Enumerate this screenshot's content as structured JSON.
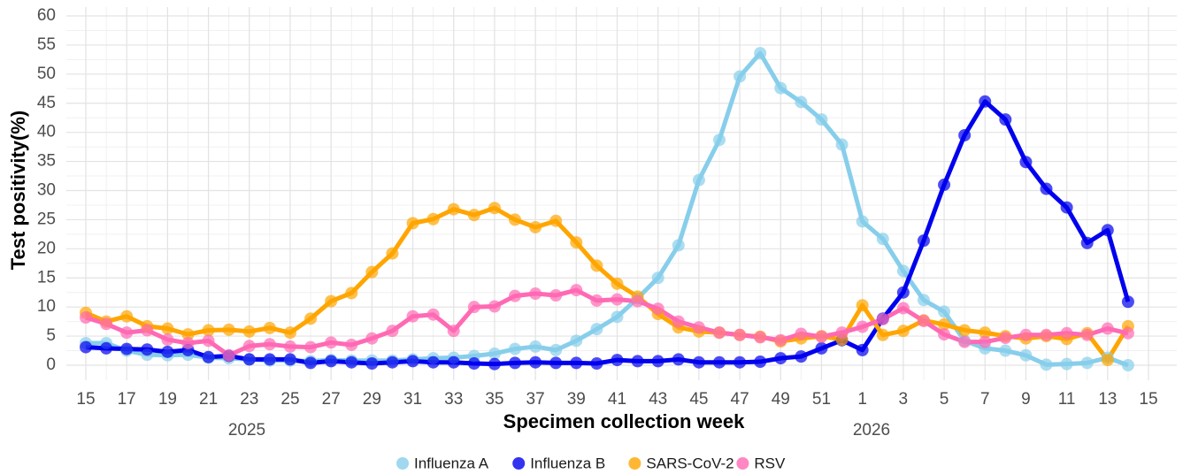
{
  "chart_data": {
    "type": "line",
    "x_label": "Specimen collection week",
    "y_label": "Test positivity(%)",
    "year_labels": [
      "2025",
      "2026"
    ],
    "categories": [
      "15",
      null,
      "17",
      null,
      "19",
      null,
      "21",
      null,
      "23",
      null,
      "25",
      null,
      "27",
      null,
      "29",
      null,
      "31",
      null,
      "33",
      null,
      "35",
      null,
      "37",
      null,
      "39",
      null,
      "41",
      null,
      "43",
      null,
      "45",
      null,
      "47",
      null,
      "49",
      null,
      "51",
      null,
      "1",
      null,
      "3",
      null,
      "5",
      null,
      "7",
      null,
      "9",
      null,
      "11",
      null,
      "13",
      null,
      "15"
    ],
    "ylim": [
      0,
      60
    ],
    "yticks": [
      0,
      5,
      10,
      15,
      20,
      25,
      30,
      35,
      40,
      45,
      50,
      55,
      60
    ],
    "grid": true,
    "legend_position": "bottom",
    "series": [
      {
        "name": "Influenza A",
        "color": "#87ceeb",
        "values": [
          3.8,
          3.8,
          2.5,
          1.8,
          1.7,
          1.8,
          1.3,
          1.2,
          1.0,
          0.8,
          0.8,
          0.7,
          0.9,
          0.8,
          0.8,
          0.8,
          1.0,
          1.2,
          1.3,
          1.6,
          2.0,
          2.8,
          3.2,
          2.6,
          4.2,
          6.2,
          8.3,
          11.5,
          15.0,
          20.6,
          31.8,
          38.7,
          49.6,
          53.6,
          47.6,
          45.2,
          42.2,
          37.9,
          24.7,
          21.7,
          16.2,
          11.2,
          9.2,
          4.2,
          2.9,
          2.5,
          1.7,
          0.1,
          0.2,
          0.4,
          1.3,
          0,
          null
        ]
      },
      {
        "name": "Influenza B",
        "color": "#0000ee",
        "values": [
          3.1,
          2.9,
          2.8,
          2.7,
          2.3,
          2.6,
          1.4,
          1.6,
          1.0,
          1.0,
          1.0,
          0.4,
          0.7,
          0.5,
          0.3,
          0.5,
          0.7,
          0.5,
          0.5,
          0.3,
          0.2,
          0.4,
          0.5,
          0.4,
          0.4,
          0.3,
          0.9,
          0.7,
          0.7,
          1.0,
          0.5,
          0.5,
          0.5,
          0.6,
          1.2,
          1.5,
          2.9,
          4.3,
          2.6,
          8.0,
          12.5,
          21.4,
          31.0,
          39.5,
          45.3,
          42.2,
          34.9,
          30.3,
          27.1,
          21.0,
          23.2,
          10.9,
          null
        ]
      },
      {
        "name": "SARS-CoV-2",
        "color": "#ffa500",
        "values": [
          9.0,
          7.5,
          8.4,
          6.7,
          6.3,
          5.3,
          6.0,
          6.1,
          5.8,
          6.4,
          5.6,
          8.0,
          11.0,
          12.4,
          16.0,
          19.2,
          24.4,
          25.1,
          26.8,
          25.8,
          27.0,
          25.0,
          23.7,
          24.8,
          21.1,
          17.1,
          14.0,
          11.8,
          8.8,
          6.5,
          5.8,
          5.6,
          5.2,
          4.9,
          4.1,
          4.6,
          5.0,
          4.4,
          10.3,
          5.2,
          5.9,
          7.7,
          7.0,
          6.0,
          5.6,
          5.0,
          4.6,
          5.0,
          4.5,
          5.5,
          0.9,
          6.7,
          null
        ]
      },
      {
        "name": "RSV",
        "color": "#ff69b4",
        "values": [
          8.2,
          7.1,
          5.6,
          6.0,
          4.4,
          3.8,
          4.2,
          1.7,
          3.3,
          3.6,
          3.2,
          3.1,
          3.9,
          3.5,
          4.6,
          5.9,
          8.4,
          8.7,
          5.9,
          10.0,
          10.1,
          11.9,
          12.3,
          12.0,
          12.9,
          11.1,
          11.3,
          11.0,
          9.7,
          7.5,
          6.5,
          5.6,
          5.2,
          4.8,
          4.3,
          5.4,
          4.9,
          5.6,
          6.6,
          7.9,
          9.8,
          7.6,
          5.3,
          4.0,
          4.0,
          4.7,
          5.2,
          5.2,
          5.5,
          5.2,
          6.3,
          5.5,
          null
        ]
      }
    ]
  }
}
